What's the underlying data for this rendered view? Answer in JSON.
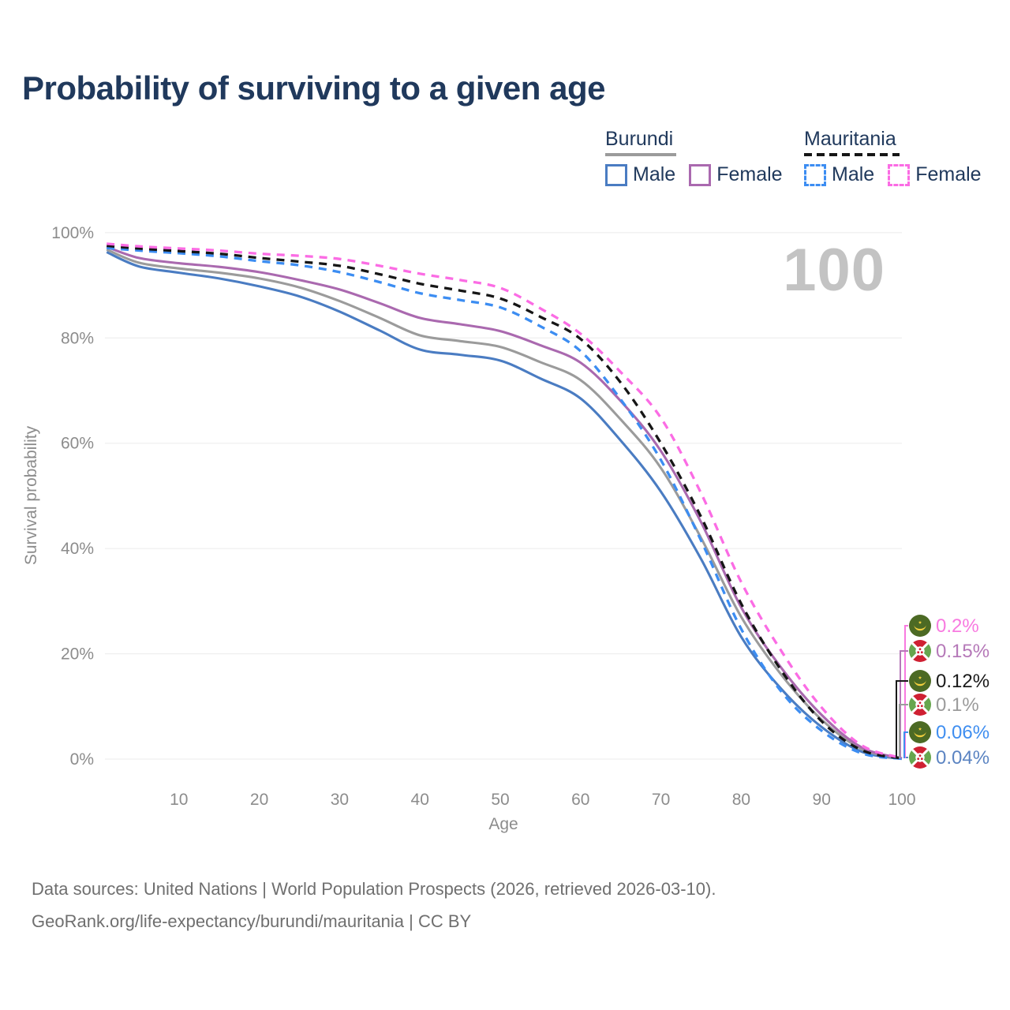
{
  "page": {
    "title": "Probability of surviving to a given age",
    "watermark": "100"
  },
  "legend": {
    "groups": [
      {
        "country": "Burundi",
        "line_style": "solid",
        "underline_color": "#9b9b9b",
        "items": [
          {
            "label": "Male",
            "color": "#4a7cc2",
            "dashed": false
          },
          {
            "label": "Female",
            "color": "#aa69af",
            "dashed": false
          }
        ]
      },
      {
        "country": "Mauritania",
        "line_style": "dashed",
        "underline_color": "#161616",
        "items": [
          {
            "label": "Male",
            "color": "#3c8df2",
            "dashed": true
          },
          {
            "label": "Female",
            "color": "#fb6ce4",
            "dashed": true
          }
        ]
      }
    ]
  },
  "chart_data": {
    "type": "line",
    "title": "Probability of surviving to a given age",
    "xlabel": "Age",
    "ylabel": "Survival probability",
    "xlim": [
      0,
      100
    ],
    "ylim": [
      0,
      100
    ],
    "grid": "horizontal-only",
    "legend_position": "top-right",
    "watermark": "100",
    "x_ticks": [
      10,
      20,
      30,
      40,
      50,
      60,
      70,
      80,
      90,
      100
    ],
    "y_ticks": [
      {
        "value": 0,
        "label": "0%"
      },
      {
        "value": 20,
        "label": "20%"
      },
      {
        "value": 40,
        "label": "40%"
      },
      {
        "value": 60,
        "label": "60%"
      },
      {
        "value": 80,
        "label": "80%"
      },
      {
        "value": 100,
        "label": "100%"
      }
    ],
    "x": [
      1,
      5,
      10,
      15,
      20,
      25,
      30,
      35,
      40,
      45,
      50,
      55,
      60,
      65,
      70,
      75,
      80,
      85,
      90,
      95,
      100
    ],
    "series": [
      {
        "name": "Burundi Male",
        "country": "Burundi",
        "sex": "Male",
        "color": "#4a7cc2",
        "dash": "solid",
        "end_label": {
          "text": "0.04%",
          "color": "#5b84c2",
          "flag": "burundi-flag-icon"
        },
        "values": [
          96.3,
          93.6,
          92.4,
          91.3,
          89.8,
          87.9,
          85.0,
          81.4,
          77.8,
          76.8,
          75.7,
          72.3,
          68.5,
          60.5,
          50.8,
          38.0,
          23.2,
          13.3,
          6.1,
          1.4,
          0.04
        ]
      },
      {
        "name": "Burundi Total",
        "country": "Burundi",
        "sex": "Both",
        "color": "#9b9b9b",
        "dash": "solid",
        "end_label": {
          "text": "0.1%",
          "color": "#9b9b9b",
          "flag": "burundi-flag-icon"
        },
        "values": [
          96.8,
          94.3,
          93.2,
          92.4,
          91.3,
          89.6,
          87.0,
          83.8,
          80.5,
          79.4,
          78.3,
          75.4,
          72.0,
          64.5,
          55.3,
          42.0,
          27.0,
          16.0,
          7.5,
          1.9,
          0.1
        ]
      },
      {
        "name": "Burundi Female",
        "country": "Burundi",
        "sex": "Female",
        "color": "#aa69af",
        "dash": "solid",
        "end_label": {
          "text": "0.15%",
          "color": "#b578b8",
          "flag": "burundi-flag-icon"
        },
        "values": [
          97.3,
          95.2,
          94.2,
          93.5,
          92.5,
          91.0,
          89.2,
          86.6,
          83.8,
          82.6,
          81.3,
          78.6,
          75.3,
          68.0,
          58.5,
          45.0,
          28.8,
          17.3,
          8.4,
          2.2,
          0.15
        ]
      },
      {
        "name": "Mauritania Male",
        "country": "Mauritania",
        "sex": "Male",
        "color": "#3c8df2",
        "dash": "dashed",
        "end_label": {
          "text": "0.06%",
          "color": "#3f8ef0",
          "flag": "mauritania-flag-icon"
        },
        "values": [
          97.1,
          96.6,
          96.1,
          95.5,
          94.6,
          93.8,
          92.5,
          90.6,
          88.5,
          87.2,
          85.8,
          82.2,
          77.5,
          68.3,
          56.8,
          41.5,
          24.7,
          12.8,
          5.4,
          1.1,
          0.06
        ]
      },
      {
        "name": "Mauritania Total",
        "country": "Mauritania",
        "sex": "Both",
        "color": "#161616",
        "dash": "dashed",
        "end_label": {
          "text": "0.12%",
          "color": "#1a1a1a",
          "flag": "mauritania-flag-icon"
        },
        "values": [
          97.5,
          97.0,
          96.5,
          96.0,
          95.2,
          94.5,
          93.7,
          92.1,
          90.3,
          89.0,
          87.5,
          84.0,
          79.8,
          71.5,
          60.0,
          46.0,
          29.5,
          16.8,
          7.2,
          1.7,
          0.12
        ]
      },
      {
        "name": "Mauritania Female",
        "country": "Mauritania",
        "sex": "Female",
        "color": "#fb6ce4",
        "dash": "dashed",
        "end_label": {
          "text": "0.2%",
          "color": "#f87ae0",
          "flag": "mauritania-flag-icon"
        },
        "values": [
          97.9,
          97.4,
          97.0,
          96.6,
          96.0,
          95.6,
          95.0,
          93.7,
          92.2,
          91.0,
          89.5,
          85.6,
          80.8,
          73.5,
          64.8,
          50.5,
          33.6,
          20.5,
          9.8,
          2.6,
          0.2
        ]
      }
    ]
  },
  "footer": {
    "line1": "Data sources: United Nations | World Population Prospects (2026, retrieved 2026-03-10).",
    "line2": "GeoRank.org/life-expectancy/burundi/mauritania | CC BY"
  }
}
